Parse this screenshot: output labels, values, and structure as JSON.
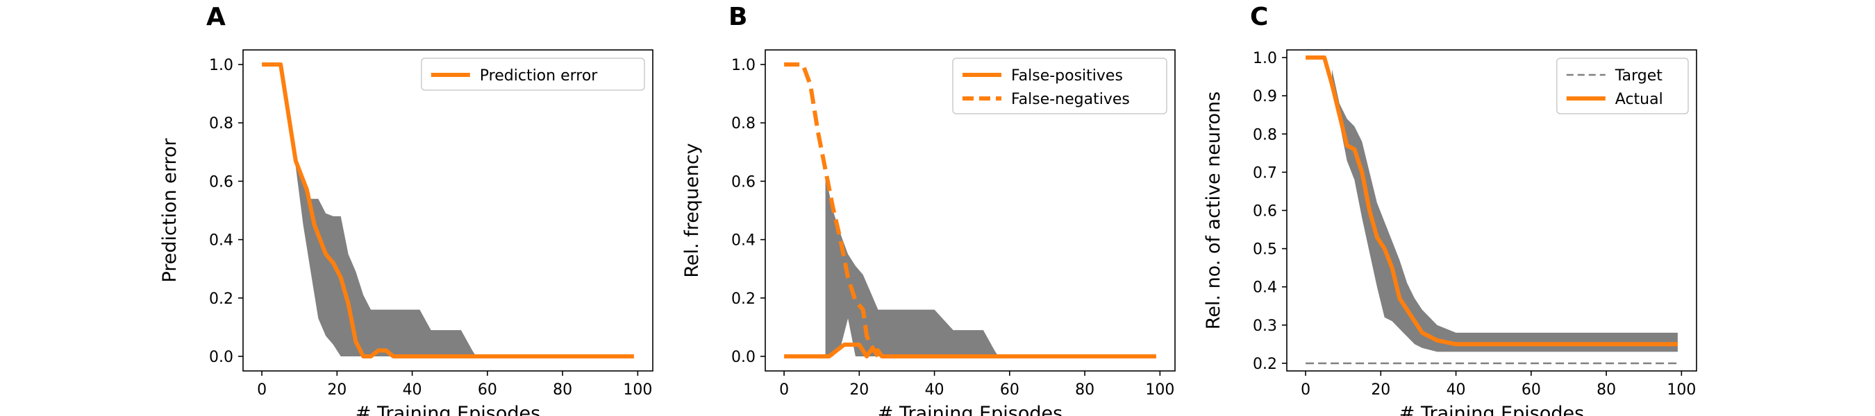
{
  "colors": {
    "orange": "#ff7f0e",
    "band": "#808080",
    "target": "#808080"
  },
  "chart_data": [
    {
      "panel_letter": "A",
      "type": "line",
      "xlabel": "# Training Episodes",
      "ylabel": "Prediction error",
      "xlim": [
        -5,
        104
      ],
      "ylim": [
        -0.05,
        1.05
      ],
      "xticks": [
        0,
        20,
        40,
        60,
        80,
        100
      ],
      "yticks": [
        0.0,
        0.2,
        0.4,
        0.6,
        0.8,
        1.0
      ],
      "legend_position": "top-right",
      "series": [
        {
          "name": "Prediction error",
          "style": "solid",
          "color": "#ff7f0e",
          "x": [
            0,
            5,
            9,
            12,
            14,
            17,
            19,
            21,
            23,
            25,
            27,
            29,
            31,
            33,
            35,
            40,
            60,
            80,
            99
          ],
          "y": [
            1.0,
            1.0,
            0.67,
            0.57,
            0.45,
            0.35,
            0.32,
            0.27,
            0.18,
            0.05,
            0.0,
            0.0,
            0.02,
            0.02,
            0.0,
            0.0,
            0.0,
            0.0,
            0.0
          ]
        }
      ],
      "bands": [
        {
          "x": [
            9,
            11,
            13,
            15,
            17,
            19,
            21,
            23,
            25,
            27,
            29,
            31,
            33,
            36,
            39,
            42,
            45,
            50,
            53,
            56,
            57,
            60,
            80,
            99
          ],
          "lower": [
            0.65,
            0.45,
            0.29,
            0.13,
            0.07,
            0.04,
            0.0,
            0.0,
            0.0,
            0.0,
            0.0,
            0.0,
            0.0,
            0.0,
            0.0,
            0.0,
            0.0,
            0.0,
            0.0,
            0.0,
            0.0,
            0.0,
            0.0,
            0.0
          ],
          "upper": [
            0.67,
            0.61,
            0.54,
            0.54,
            0.49,
            0.48,
            0.48,
            0.35,
            0.29,
            0.21,
            0.16,
            0.16,
            0.16,
            0.16,
            0.16,
            0.16,
            0.09,
            0.09,
            0.09,
            0.02,
            0.0,
            0.0,
            0.0,
            0.0
          ]
        }
      ]
    },
    {
      "panel_letter": "B",
      "type": "line",
      "xlabel": "# Training Episodes",
      "ylabel": "Rel. frequency",
      "xlim": [
        -5,
        104
      ],
      "ylim": [
        -0.05,
        1.05
      ],
      "xticks": [
        0,
        20,
        40,
        60,
        80,
        100
      ],
      "yticks": [
        0.0,
        0.2,
        0.4,
        0.6,
        0.8,
        1.0
      ],
      "legend_position": "top-right",
      "series": [
        {
          "name": "False-positives",
          "style": "solid",
          "color": "#ff7f0e",
          "x": [
            0,
            12,
            14,
            16,
            18,
            20,
            21,
            22,
            23,
            24,
            25,
            26,
            40,
            60,
            80,
            99
          ],
          "y": [
            0.0,
            0.0,
            0.02,
            0.04,
            0.04,
            0.04,
            0.02,
            0.0,
            0.02,
            0.02,
            0.02,
            0.0,
            0.0,
            0.0,
            0.0,
            0.0
          ]
        },
        {
          "name": "False-negatives",
          "style": "dashed",
          "color": "#ff7f0e",
          "x": [
            0,
            5,
            7,
            9,
            11,
            13,
            15,
            17,
            19,
            21,
            22,
            23,
            24,
            25
          ],
          "y": [
            1.0,
            1.0,
            0.93,
            0.77,
            0.64,
            0.51,
            0.4,
            0.27,
            0.19,
            0.16,
            0.07,
            0.04,
            0.02,
            0.0
          ]
        }
      ],
      "bands": [
        {
          "x": [
            11,
            13,
            15,
            17,
            19,
            21,
            23,
            25,
            27,
            29,
            31,
            33,
            36,
            40,
            45,
            50,
            53,
            56,
            57,
            60,
            80,
            99
          ],
          "lower": [
            0.0,
            0.0,
            0.03,
            0.13,
            0.0,
            0.0,
            0.0,
            0.0,
            0.0,
            0.0,
            0.0,
            0.0,
            0.0,
            0.0,
            0.0,
            0.0,
            0.0,
            0.0,
            0.0,
            0.0,
            0.0,
            0.0
          ],
          "upper": [
            0.62,
            0.5,
            0.42,
            0.35,
            0.31,
            0.28,
            0.22,
            0.16,
            0.16,
            0.16,
            0.16,
            0.16,
            0.16,
            0.16,
            0.09,
            0.09,
            0.09,
            0.02,
            0.0,
            0.0,
            0.0,
            0.0
          ]
        }
      ]
    },
    {
      "panel_letter": "C",
      "type": "line",
      "xlabel": "# Training Episodes",
      "ylabel": "Rel. no. of active neurons",
      "xlim": [
        -5,
        104
      ],
      "ylim": [
        0.18,
        1.02
      ],
      "xticks": [
        0,
        20,
        40,
        60,
        80,
        100
      ],
      "yticks": [
        0.2,
        0.3,
        0.4,
        0.5,
        0.6,
        0.7,
        0.8,
        0.9,
        1.0
      ],
      "legend_position": "top-right",
      "series": [
        {
          "name": "Target",
          "style": "dashed-thin",
          "color": "#808080",
          "x": [
            0,
            99
          ],
          "y": [
            0.2,
            0.2
          ]
        },
        {
          "name": "Actual",
          "style": "solid",
          "color": "#ff7f0e",
          "x": [
            0,
            5,
            7,
            9,
            11,
            13,
            15,
            17,
            19,
            21,
            23,
            25,
            27,
            29,
            31,
            35,
            40,
            60,
            80,
            99
          ],
          "y": [
            1.0,
            1.0,
            0.93,
            0.85,
            0.77,
            0.76,
            0.7,
            0.6,
            0.53,
            0.5,
            0.45,
            0.37,
            0.34,
            0.31,
            0.28,
            0.26,
            0.25,
            0.25,
            0.25,
            0.25
          ]
        }
      ],
      "bands": [
        {
          "x": [
            7,
            9,
            11,
            13,
            15,
            17,
            19,
            21,
            23,
            25,
            27,
            29,
            31,
            35,
            40,
            60,
            80,
            99
          ],
          "lower": [
            0.93,
            0.83,
            0.73,
            0.68,
            0.58,
            0.49,
            0.4,
            0.32,
            0.31,
            0.29,
            0.27,
            0.25,
            0.24,
            0.23,
            0.23,
            0.23,
            0.23,
            0.23
          ],
          "upper": [
            0.97,
            0.88,
            0.84,
            0.82,
            0.78,
            0.7,
            0.62,
            0.57,
            0.52,
            0.47,
            0.41,
            0.37,
            0.34,
            0.3,
            0.28,
            0.28,
            0.28,
            0.28
          ]
        }
      ]
    }
  ]
}
